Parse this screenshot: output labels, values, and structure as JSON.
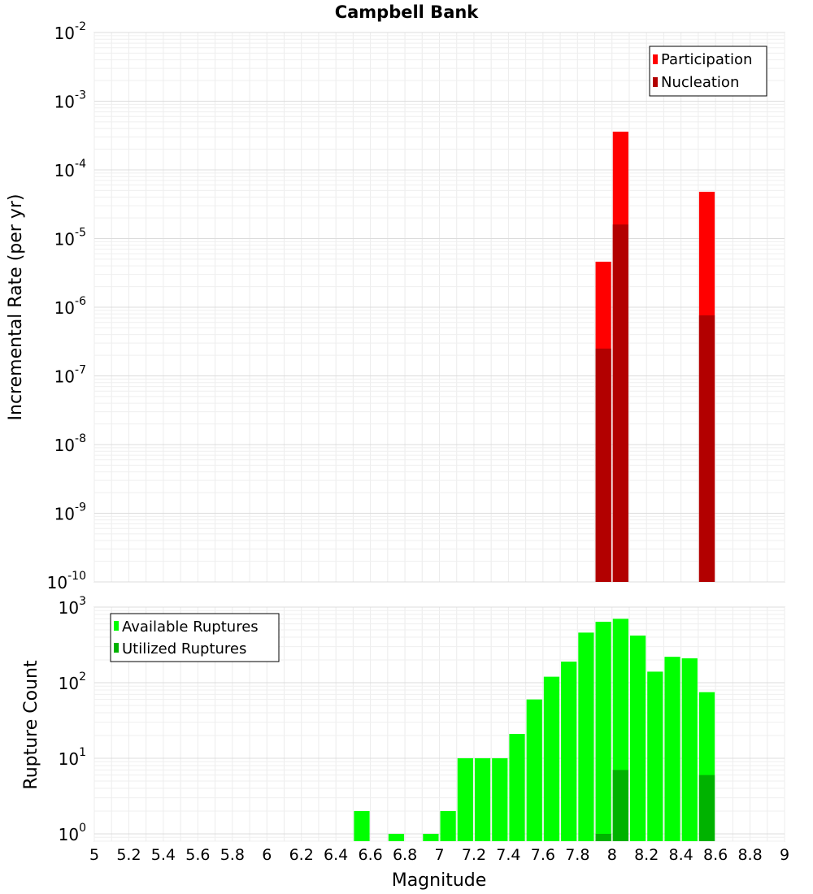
{
  "chart_data": [
    {
      "type": "bar",
      "title": "Campbell Bank",
      "ylabel": "Incremental Rate (per yr)",
      "xlabel": "",
      "yscale": "log",
      "ylim": [
        1e-10,
        0.01
      ],
      "xlim": [
        5,
        9
      ],
      "ytick_bases": [
        "10",
        "10",
        "10",
        "10",
        "10",
        "10",
        "10",
        "10",
        "10"
      ],
      "ytick_exponents": [
        "-10",
        "-9",
        "-8",
        "-7",
        "-6",
        "-5",
        "-4",
        "-3",
        "-2"
      ],
      "legend_position": "top-right",
      "series": [
        {
          "name": "Participation",
          "color": "#ff0000",
          "points": [
            {
              "x": 7.95,
              "y": 4.6e-06
            },
            {
              "x": 8.05,
              "y": 0.00036
            },
            {
              "x": 8.55,
              "y": 4.8e-05
            }
          ]
        },
        {
          "name": "Nucleation",
          "color": "#b20000",
          "points": [
            {
              "x": 7.95,
              "y": 2.5e-07
            },
            {
              "x": 8.05,
              "y": 1.6e-05
            },
            {
              "x": 8.55,
              "y": 7.6e-07
            }
          ]
        }
      ]
    },
    {
      "type": "bar",
      "title": "",
      "ylabel": "Rupture Count",
      "xlabel": "Magnitude",
      "yscale": "log",
      "ylim": [
        0.8,
        1000
      ],
      "xlim": [
        5,
        9
      ],
      "ytick_bases": [
        "10",
        "10",
        "10",
        "10"
      ],
      "ytick_exponents": [
        "0",
        "1",
        "2",
        "3"
      ],
      "xticks": [
        "5",
        "5.2",
        "5.4",
        "5.6",
        "5.8",
        "6",
        "6.2",
        "6.4",
        "6.6",
        "6.8",
        "7",
        "7.2",
        "7.4",
        "7.6",
        "7.8",
        "8",
        "8.2",
        "8.4",
        "8.6",
        "8.8",
        "9"
      ],
      "legend_position": "top-left",
      "series": [
        {
          "name": "Available Ruptures",
          "color": "#00ff00",
          "points": [
            {
              "x": 6.55,
              "y": 2
            },
            {
              "x": 6.75,
              "y": 1
            },
            {
              "x": 6.95,
              "y": 1
            },
            {
              "x": 7.05,
              "y": 2
            },
            {
              "x": 7.15,
              "y": 10
            },
            {
              "x": 7.25,
              "y": 10
            },
            {
              "x": 7.35,
              "y": 10
            },
            {
              "x": 7.45,
              "y": 21
            },
            {
              "x": 7.55,
              "y": 60
            },
            {
              "x": 7.65,
              "y": 120
            },
            {
              "x": 7.75,
              "y": 190
            },
            {
              "x": 7.85,
              "y": 460
            },
            {
              "x": 7.95,
              "y": 640
            },
            {
              "x": 8.05,
              "y": 700
            },
            {
              "x": 8.15,
              "y": 420
            },
            {
              "x": 8.25,
              "y": 140
            },
            {
              "x": 8.35,
              "y": 220
            },
            {
              "x": 8.45,
              "y": 210
            },
            {
              "x": 8.55,
              "y": 75
            }
          ]
        },
        {
          "name": "Utilized Ruptures",
          "color": "#00b200",
          "points": [
            {
              "x": 7.95,
              "y": 1
            },
            {
              "x": 8.05,
              "y": 7
            },
            {
              "x": 8.55,
              "y": 6
            }
          ]
        }
      ]
    }
  ]
}
